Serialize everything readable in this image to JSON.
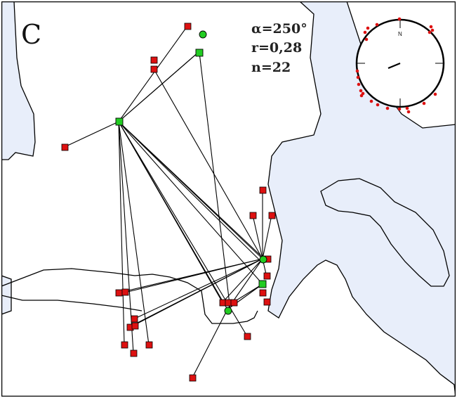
{
  "panel": {
    "letter": "C"
  },
  "stats": {
    "alpha": "α=250°",
    "r": "r=0,28",
    "n": "n=22"
  },
  "compass": {
    "north_label": "N",
    "mean_direction_deg": 250,
    "mean_vector_length": 0.28,
    "count": 22
  },
  "colors": {
    "water": "#e8eefa",
    "land": "#ffffff",
    "coast": "#000000",
    "site_marker": "#22cc22",
    "find_marker": "#dd1111",
    "line": "#000000"
  }
}
